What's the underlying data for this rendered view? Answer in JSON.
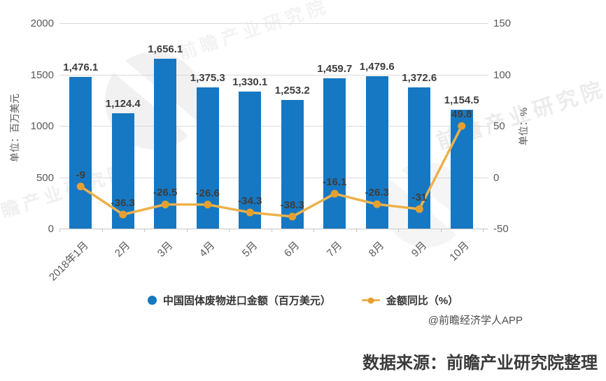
{
  "chart_data": {
    "type": "bar+line combo",
    "title": "",
    "categories": [
      "2018年1月",
      "2月",
      "3月",
      "4月",
      "5月",
      "6月",
      "7月",
      "8月",
      "9月",
      "10月"
    ],
    "series": [
      {
        "name": "中国固体废物进口金额（百万美元）",
        "type": "bar",
        "axis": "left",
        "color": "#1678c2",
        "values": [
          1476.1,
          1124.4,
          1656.1,
          1375.3,
          1330.1,
          1253.2,
          1459.7,
          1479.6,
          1372.6,
          1154.5
        ]
      },
      {
        "name": "金额同比（%）",
        "type": "line",
        "axis": "right",
        "color": "#edb14b",
        "marker_color": "#e6a030",
        "values": [
          -9,
          -36.3,
          -26.5,
          -26.6,
          -34.3,
          -38.3,
          -16.1,
          -26.3,
          -31,
          49.8
        ]
      }
    ],
    "left_axis": {
      "title": "单位：百万美元",
      "range": [
        0,
        2000
      ],
      "ticks": [
        2000,
        1500,
        1000,
        500,
        0
      ]
    },
    "right_axis": {
      "title": "单位：%",
      "range": [
        -50,
        150
      ],
      "ticks": [
        150,
        100,
        50,
        0,
        -50
      ]
    },
    "grid": true,
    "legend_position": "bottom"
  },
  "legend": {
    "items": [
      {
        "label": "中国固体废物进口金额（百万美元）",
        "marker": "circle",
        "color": "#1678c2"
      },
      {
        "label": "金额同比（%）",
        "marker": "line-dot",
        "color": "#e6a030",
        "line_color": "#edb14b"
      }
    ]
  },
  "byline": "@前瞻经济学人APP",
  "source_note": "数据来源：前瞻产业研究院整理",
  "watermark": {
    "text": "前瞻产业研究院"
  },
  "colors": {
    "bar": "#1678c2",
    "line": "#edb14b",
    "marker": "#e6a030",
    "grid": "#d9d9d9",
    "axis_text": "#595959",
    "value_label_text": "#3d3d3d"
  }
}
